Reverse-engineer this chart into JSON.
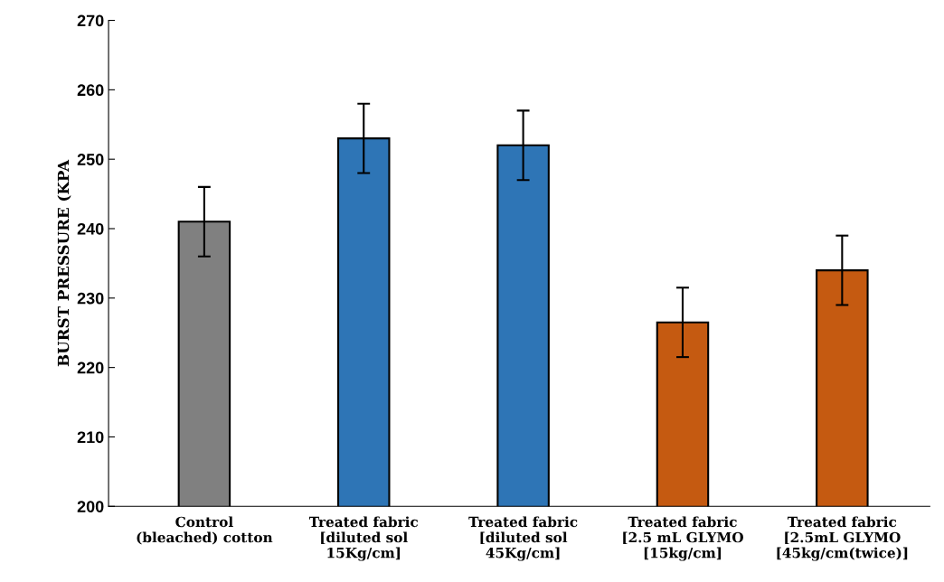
{
  "chart_data": {
    "type": "bar",
    "ylabel": "BURST PRESSURE (KPA",
    "categories": [
      "Control\n(bleached) cotton",
      "Treated fabric\n[diluted sol\n15Kg/cm]",
      "Treated fabric\n[diluted sol\n45Kg/cm]",
      "Treated fabric\n[2.5 mL GLYMO\n[15kg/cm]",
      "Treated fabric\n[2.5mL GLYMO\n[45kg/cm(twice)]"
    ],
    "values": [
      241,
      253,
      252,
      226.5,
      234
    ],
    "errors": [
      5,
      5,
      5,
      5,
      5
    ],
    "colors": [
      "#808080",
      "#2e75b6",
      "#2e75b6",
      "#c55a11",
      "#c55a11"
    ],
    "ylim": [
      200,
      270
    ],
    "yticks": [
      200,
      210,
      220,
      230,
      240,
      250,
      260,
      270
    ],
    "grid": false,
    "legend": false
  }
}
